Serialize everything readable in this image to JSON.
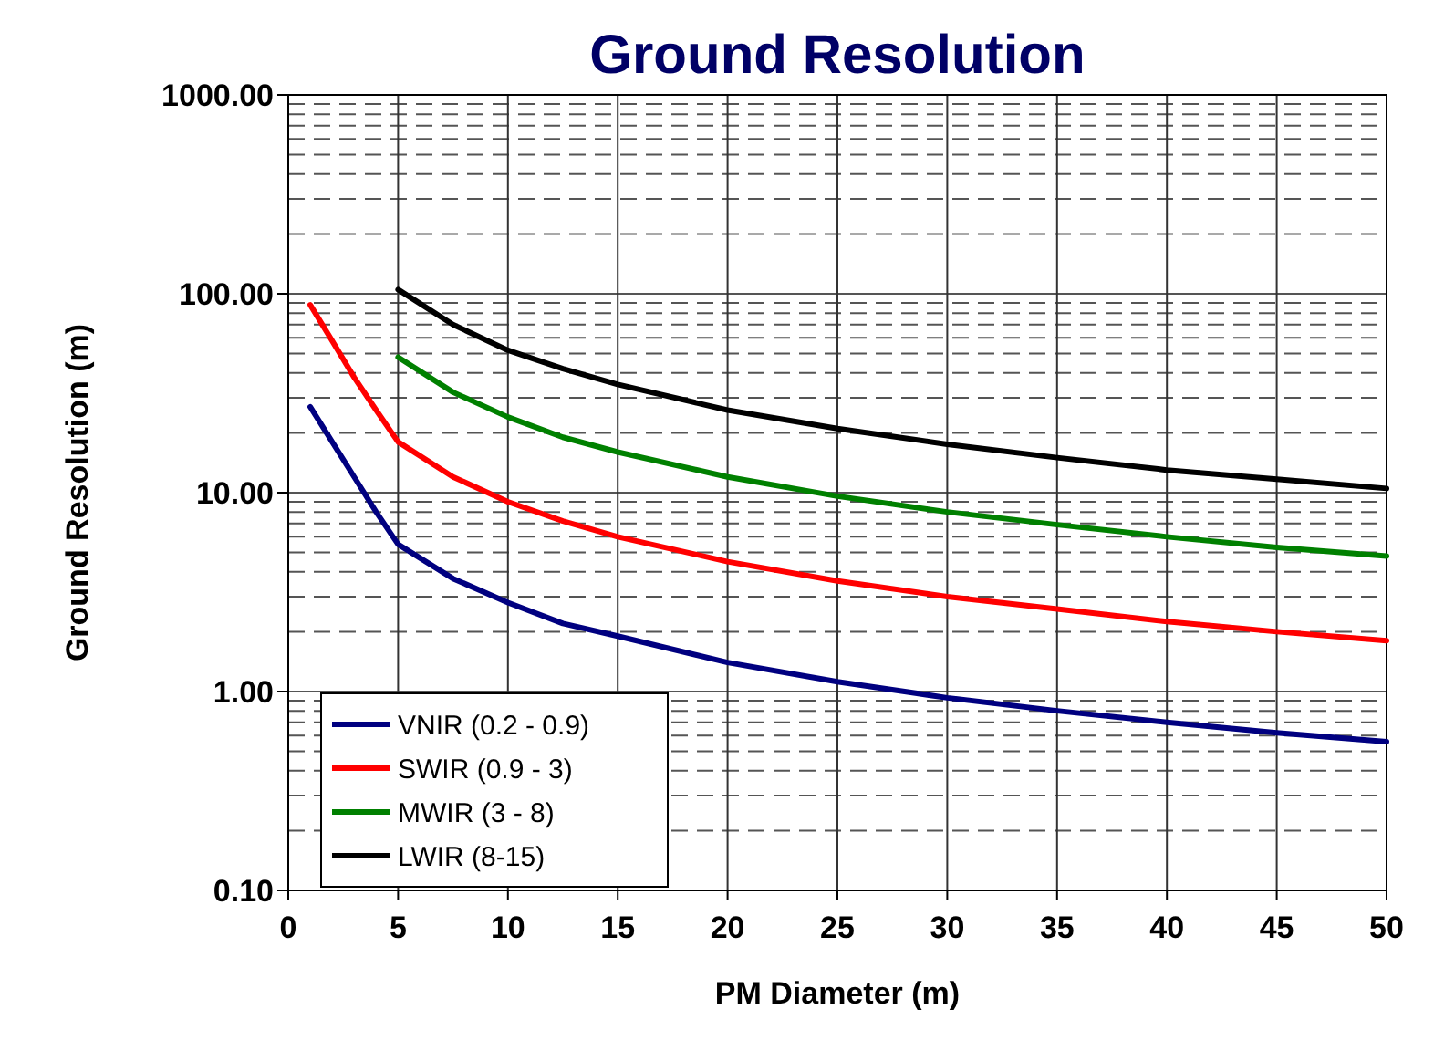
{
  "chart_data": {
    "type": "line",
    "title": "Ground Resolution",
    "xlabel": "PM Diameter (m)",
    "ylabel": "Ground Resolution (m)",
    "log": "y",
    "grid": true,
    "legend": "bottom left",
    "xlim": [
      0,
      50
    ],
    "xticks": [
      0,
      5,
      10,
      15,
      20,
      25,
      30,
      35,
      40,
      45,
      50
    ],
    "ylim": [
      0.1,
      1000
    ],
    "yticks": [
      {
        "value": 0.1,
        "label": "0.10"
      },
      {
        "value": 1,
        "label": "1.00"
      },
      {
        "value": 10,
        "label": "10.00"
      },
      {
        "value": 100,
        "label": "100.00"
      },
      {
        "value": 1000,
        "label": "1000.00"
      }
    ],
    "series": [
      {
        "name": "VNIR (0.2 - 0.9)",
        "color": "#000080",
        "x": [
          1,
          2,
          3,
          4,
          5,
          7.5,
          10,
          12.5,
          15,
          20,
          25,
          30,
          35,
          40,
          45,
          50
        ],
        "values": [
          27,
          18,
          12,
          8,
          5.5,
          3.7,
          2.8,
          2.2,
          1.9,
          1.4,
          1.12,
          0.93,
          0.8,
          0.7,
          0.62,
          0.56
        ]
      },
      {
        "name": "SWIR (0.9 - 3)",
        "color": "#ff0000",
        "x": [
          1,
          2,
          3,
          4,
          5,
          7.5,
          10,
          12.5,
          15,
          20,
          25,
          30,
          35,
          40,
          45,
          50
        ],
        "values": [
          88,
          58,
          38,
          26,
          18,
          12,
          9,
          7.2,
          6,
          4.5,
          3.6,
          3,
          2.6,
          2.25,
          2,
          1.8
        ]
      },
      {
        "name": "MWIR (3 - 8)",
        "color": "#008000",
        "x": [
          5,
          7.5,
          10,
          12.5,
          15,
          20,
          25,
          30,
          35,
          40,
          45,
          50
        ],
        "values": [
          48,
          32,
          24,
          19,
          16,
          12,
          9.6,
          8,
          6.9,
          6,
          5.3,
          4.8
        ]
      },
      {
        "name": "LWIR (8-15)",
        "color": "#000000",
        "x": [
          5,
          7.5,
          10,
          12.5,
          15,
          20,
          25,
          30,
          35,
          40,
          45,
          50
        ],
        "values": [
          105,
          70,
          52,
          42,
          35,
          26,
          21,
          17.5,
          15,
          13,
          11.7,
          10.5
        ]
      }
    ]
  }
}
